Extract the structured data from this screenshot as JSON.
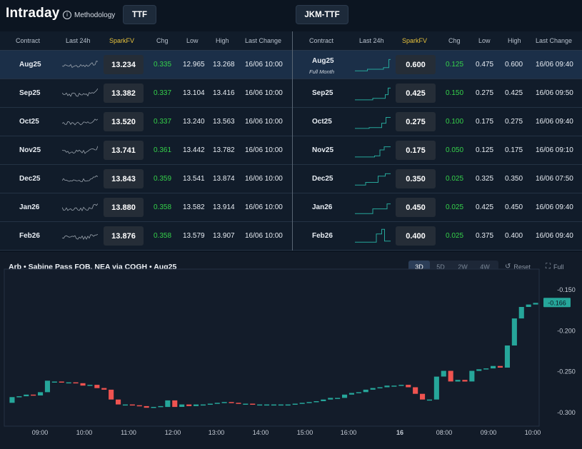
{
  "app": {
    "title": "Intraday",
    "methodology_label": "Methodology",
    "info_icon": "info-icon",
    "tabs": [
      "TTF",
      "JKM-TTF"
    ]
  },
  "columns": [
    "Contract",
    "Last 24h",
    "SparkFV",
    "Chg",
    "Low",
    "High",
    "Last Change"
  ],
  "ttf": {
    "rows": [
      {
        "contract": "Aug25",
        "sparkfv": "13.234",
        "chg": "0.335",
        "low": "12.965",
        "high": "13.268",
        "last_change": "16/06 10:00"
      },
      {
        "contract": "Sep25",
        "sparkfv": "13.382",
        "chg": "0.337",
        "low": "13.104",
        "high": "13.416",
        "last_change": "16/06 10:00"
      },
      {
        "contract": "Oct25",
        "sparkfv": "13.520",
        "chg": "0.337",
        "low": "13.240",
        "high": "13.563",
        "last_change": "16/06 10:00"
      },
      {
        "contract": "Nov25",
        "sparkfv": "13.741",
        "chg": "0.361",
        "low": "13.442",
        "high": "13.782",
        "last_change": "16/06 10:00"
      },
      {
        "contract": "Dec25",
        "sparkfv": "13.843",
        "chg": "0.359",
        "low": "13.541",
        "high": "13.874",
        "last_change": "16/06 10:00"
      },
      {
        "contract": "Jan26",
        "sparkfv": "13.880",
        "chg": "0.358",
        "low": "13.582",
        "high": "13.914",
        "last_change": "16/06 10:00"
      },
      {
        "contract": "Feb26",
        "sparkfv": "13.876",
        "chg": "0.358",
        "low": "13.579",
        "high": "13.907",
        "last_change": "16/06 10:00"
      }
    ]
  },
  "jkm_ttf": {
    "rows": [
      {
        "contract": "Aug25",
        "sub": "Full Month",
        "sparkfv": "0.600",
        "chg": "0.125",
        "low": "0.475",
        "high": "0.600",
        "last_change": "16/06 09:40"
      },
      {
        "contract": "Sep25",
        "sparkfv": "0.425",
        "chg": "0.150",
        "low": "0.275",
        "high": "0.425",
        "last_change": "16/06 09:50"
      },
      {
        "contract": "Oct25",
        "sparkfv": "0.275",
        "chg": "0.100",
        "low": "0.175",
        "high": "0.275",
        "last_change": "16/06 09:40"
      },
      {
        "contract": "Nov25",
        "sparkfv": "0.175",
        "chg": "0.050",
        "low": "0.125",
        "high": "0.175",
        "last_change": "16/06 09:10"
      },
      {
        "contract": "Dec25",
        "sparkfv": "0.350",
        "chg": "0.025",
        "low": "0.325",
        "high": "0.350",
        "last_change": "16/06 07:50"
      },
      {
        "contract": "Jan26",
        "sparkfv": "0.450",
        "chg": "0.025",
        "low": "0.425",
        "high": "0.450",
        "last_change": "16/06 09:40"
      },
      {
        "contract": "Feb26",
        "sparkfv": "0.400",
        "chg": "0.025",
        "low": "0.375",
        "high": "0.400",
        "last_change": "16/06 09:40"
      }
    ]
  },
  "chart_panel": {
    "title": "Arb • Sabine Pass FOB, NEA via COGH • Aug25",
    "ranges": [
      "3D",
      "5D",
      "2W",
      "4W"
    ],
    "active_range": "3D",
    "reset_label": "Reset",
    "full_label": "Full",
    "reset_icon": "reset-icon",
    "full_icon": "fullscreen-icon"
  },
  "colors": {
    "up": "#26a69a",
    "down": "#ef5350",
    "accent": "#e7c23c",
    "positive": "#35d14a",
    "ttf_spark": "#9aa3ad",
    "jkm_spark": "#26a69a"
  },
  "chart_data": {
    "type": "candlestick",
    "title": "Arb • Sabine Pass FOB, NEA via COGH • Aug25",
    "x_ticks": [
      "09:00",
      "10:00",
      "11:00",
      "12:00",
      "13:00",
      "14:00",
      "15:00",
      "16:00",
      "16",
      "08:00",
      "09:00",
      "10:00"
    ],
    "y_ticks": [
      -0.15,
      -0.2,
      -0.25,
      -0.3
    ],
    "ylim": [
      -0.313,
      -0.137
    ],
    "last_price": "-0.166",
    "candles": [
      {
        "o": -0.288,
        "c": -0.281
      },
      {
        "o": -0.281,
        "c": -0.28
      },
      {
        "o": -0.28,
        "c": -0.278
      },
      {
        "o": -0.278,
        "c": -0.279
      },
      {
        "o": -0.279,
        "c": -0.275
      },
      {
        "o": -0.275,
        "c": -0.261
      },
      {
        "o": -0.263,
        "c": -0.262
      },
      {
        "o": -0.262,
        "c": -0.263
      },
      {
        "o": -0.263,
        "c": -0.263
      },
      {
        "o": -0.263,
        "c": -0.264
      },
      {
        "o": -0.264,
        "c": -0.267
      },
      {
        "o": -0.267,
        "c": -0.266
      },
      {
        "o": -0.266,
        "c": -0.27
      },
      {
        "o": -0.27,
        "c": -0.272
      },
      {
        "o": -0.272,
        "c": -0.284
      },
      {
        "o": -0.284,
        "c": -0.29
      },
      {
        "o": -0.29,
        "c": -0.29
      },
      {
        "o": -0.29,
        "c": -0.291
      },
      {
        "o": -0.291,
        "c": -0.292
      },
      {
        "o": -0.292,
        "c": -0.294
      },
      {
        "o": -0.294,
        "c": -0.293
      },
      {
        "o": -0.293,
        "c": -0.292
      },
      {
        "o": -0.293,
        "c": -0.285
      },
      {
        "o": -0.285,
        "c": -0.293
      },
      {
        "o": -0.293,
        "c": -0.29
      },
      {
        "o": -0.29,
        "c": -0.292
      },
      {
        "o": -0.292,
        "c": -0.29
      },
      {
        "o": -0.29,
        "c": -0.29
      },
      {
        "o": -0.29,
        "c": -0.289
      },
      {
        "o": -0.289,
        "c": -0.288
      },
      {
        "o": -0.288,
        "c": -0.287
      },
      {
        "o": -0.287,
        "c": -0.288
      },
      {
        "o": -0.288,
        "c": -0.289
      },
      {
        "o": -0.289,
        "c": -0.289
      },
      {
        "o": -0.289,
        "c": -0.29
      },
      {
        "o": -0.29,
        "c": -0.29
      },
      {
        "o": -0.29,
        "c": -0.29
      },
      {
        "o": -0.29,
        "c": -0.29
      },
      {
        "o": -0.29,
        "c": -0.29
      },
      {
        "o": -0.29,
        "c": -0.29
      },
      {
        "o": -0.29,
        "c": -0.289
      },
      {
        "o": -0.289,
        "c": -0.288
      },
      {
        "o": -0.288,
        "c": -0.287
      },
      {
        "o": -0.287,
        "c": -0.286
      },
      {
        "o": -0.286,
        "c": -0.284
      },
      {
        "o": -0.284,
        "c": -0.282
      },
      {
        "o": -0.282,
        "c": -0.282
      },
      {
        "o": -0.282,
        "c": -0.278
      },
      {
        "o": -0.278,
        "c": -0.276
      },
      {
        "o": -0.276,
        "c": -0.275
      },
      {
        "o": -0.275,
        "c": -0.272
      },
      {
        "o": -0.272,
        "c": -0.27
      },
      {
        "o": -0.27,
        "c": -0.269
      },
      {
        "o": -0.269,
        "c": -0.267
      },
      {
        "o": -0.267,
        "c": -0.267
      },
      {
        "o": -0.267,
        "c": -0.266
      },
      {
        "o": -0.266,
        "c": -0.269
      },
      {
        "o": -0.269,
        "c": -0.277
      },
      {
        "o": -0.277,
        "c": -0.284
      },
      {
        "o": -0.284,
        "c": -0.284
      },
      {
        "o": -0.284,
        "c": -0.256
      },
      {
        "o": -0.256,
        "c": -0.249
      },
      {
        "o": -0.249,
        "c": -0.262
      },
      {
        "o": -0.262,
        "c": -0.26
      },
      {
        "o": -0.26,
        "c": -0.262
      },
      {
        "o": -0.262,
        "c": -0.249
      },
      {
        "o": -0.249,
        "c": -0.247
      },
      {
        "o": -0.247,
        "c": -0.246
      },
      {
        "o": -0.246,
        "c": -0.243
      },
      {
        "o": -0.243,
        "c": -0.245
      },
      {
        "o": -0.245,
        "c": -0.218
      },
      {
        "o": -0.218,
        "c": -0.185
      },
      {
        "o": -0.185,
        "c": -0.171
      },
      {
        "o": -0.171,
        "c": -0.168
      },
      {
        "o": -0.168,
        "c": -0.166
      }
    ]
  }
}
